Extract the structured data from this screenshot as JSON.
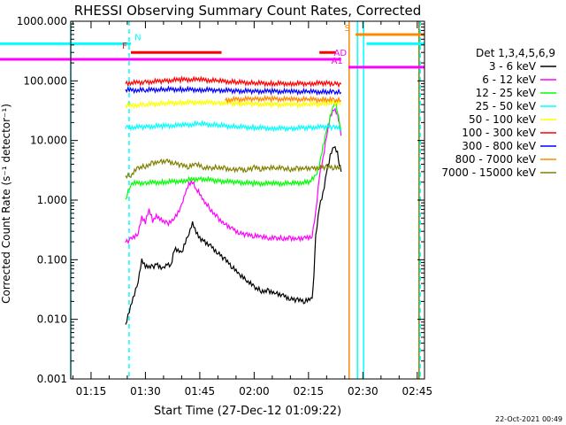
{
  "chart_data": {
    "type": "line",
    "title": "RHESSI Observing Summary Count Rates, Corrected",
    "xlabel": "Start Time (27-Dec-12 01:09:22)",
    "ylabel": "Corrected Count Rate (s⁻¹ detector⁻¹)",
    "footer_date": "22-Oct-2021 00:49",
    "x_scale": "time",
    "x_unit": "minutes after 01:00 UT",
    "xlim": [
      69.4,
      167
    ],
    "y_scale": "log",
    "ylim": [
      0.001,
      1000
    ],
    "xticks": [
      {
        "value": 75,
        "label": "01:15"
      },
      {
        "value": 90,
        "label": "01:30"
      },
      {
        "value": 105,
        "label": "01:45"
      },
      {
        "value": 120,
        "label": "02:00"
      },
      {
        "value": 135,
        "label": "02:15"
      },
      {
        "value": 150,
        "label": "02:30"
      },
      {
        "value": 165,
        "label": "02:45"
      }
    ],
    "yticks": [
      {
        "value": 0.001,
        "label": "0.001"
      },
      {
        "value": 0.01,
        "label": "0.010"
      },
      {
        "value": 0.1,
        "label": "0.100"
      },
      {
        "value": 1,
        "label": "1.000"
      },
      {
        "value": 10,
        "label": "10.000"
      },
      {
        "value": 100,
        "label": "100.000"
      },
      {
        "value": 1000,
        "label": "1000.000"
      }
    ],
    "legend_title": "Det 1,3,4,5,6,9",
    "legend_position": "right",
    "series": [
      {
        "name": "3 - 6 keV",
        "color": "#000000",
        "x": [
          84.5,
          88,
          89,
          90,
          92,
          93,
          95,
          96,
          97,
          98,
          100,
          102,
          103,
          104,
          105,
          106,
          108,
          110,
          112,
          114,
          116,
          118,
          120,
          122,
          124,
          126,
          128,
          130,
          132,
          134,
          136,
          136.5,
          137,
          138,
          139,
          140,
          141,
          142,
          143,
          143.5,
          144
        ],
        "y": [
          0.008,
          0.045,
          0.1,
          0.08,
          0.075,
          0.085,
          0.07,
          0.085,
          0.075,
          0.15,
          0.13,
          0.28,
          0.42,
          0.3,
          0.23,
          0.21,
          0.17,
          0.13,
          0.1,
          0.075,
          0.055,
          0.045,
          0.035,
          0.03,
          0.03,
          0.028,
          0.025,
          0.022,
          0.021,
          0.02,
          0.022,
          0.06,
          0.25,
          0.8,
          1.3,
          3,
          5.5,
          8,
          6,
          4,
          3
        ]
      },
      {
        "name": "6 - 12 keV",
        "color": "#ff00ff",
        "x": [
          84.5,
          86,
          88,
          89,
          90,
          91,
          92,
          93,
          94,
          96,
          98,
          100,
          101,
          102,
          103,
          104,
          105,
          106,
          108,
          110,
          112,
          114,
          116,
          118,
          120,
          122,
          124,
          126,
          128,
          130,
          132,
          134,
          136,
          137,
          138,
          139,
          140,
          141,
          142,
          143,
          143.5,
          144
        ],
        "y": [
          0.2,
          0.22,
          0.28,
          0.5,
          0.42,
          0.7,
          0.45,
          0.55,
          0.5,
          0.4,
          0.5,
          0.8,
          1.3,
          1.8,
          2.0,
          1.5,
          1.3,
          1.0,
          0.7,
          0.5,
          0.4,
          0.33,
          0.28,
          0.26,
          0.25,
          0.24,
          0.23,
          0.23,
          0.23,
          0.23,
          0.23,
          0.23,
          0.25,
          0.6,
          2.5,
          5,
          12,
          25,
          35,
          28,
          20,
          12
        ]
      },
      {
        "name": "12 - 25 keV",
        "color": "#00ff00",
        "x": [
          84.5,
          86,
          90,
          95,
          100,
          105,
          110,
          115,
          120,
          125,
          130,
          135,
          137,
          138,
          139,
          140,
          141,
          142,
          142.5,
          143,
          143.5,
          144
        ],
        "y": [
          1.0,
          1.9,
          1.95,
          2.0,
          2.1,
          2.3,
          2.1,
          2.0,
          1.9,
          1.9,
          1.9,
          2.0,
          2.5,
          4,
          8,
          15,
          25,
          40,
          42,
          30,
          20,
          15
        ]
      },
      {
        "name": "25 - 50 keV",
        "color": "#00ffff",
        "x": [
          84.5,
          85,
          90,
          95,
          100,
          105,
          110,
          115,
          120,
          125,
          130,
          135,
          140,
          142,
          144
        ],
        "y": [
          16,
          16.5,
          17,
          17.5,
          18,
          19,
          18,
          17,
          16.5,
          16,
          16,
          16.5,
          17,
          16.5,
          16
        ]
      },
      {
        "name": "50 - 100 keV",
        "color": "#ffff00",
        "x": [
          84.5,
          90,
          95,
          100,
          105,
          110,
          115,
          120,
          125,
          130,
          135,
          140,
          142,
          144
        ],
        "y": [
          38,
          40,
          42,
          43,
          44,
          43,
          42,
          41,
          40,
          40,
          40,
          42,
          43,
          42
        ]
      },
      {
        "name": "100 - 300 keV",
        "color": "#ff0000",
        "x": [
          84.5,
          90,
          95,
          100,
          105,
          110,
          115,
          120,
          125,
          130,
          135,
          140,
          142,
          144
        ],
        "y": [
          92,
          95,
          100,
          105,
          105,
          100,
          95,
          92,
          90,
          90,
          90,
          92,
          90,
          88
        ]
      },
      {
        "name": "300 - 800 keV",
        "color": "#0000ff",
        "x": [
          84.5,
          90,
          95,
          100,
          105,
          110,
          115,
          120,
          125,
          130,
          135,
          140,
          142,
          144
        ],
        "y": [
          70,
          70,
          72,
          72,
          71,
          70,
          68,
          67,
          67,
          66,
          66,
          65,
          65,
          64
        ]
      },
      {
        "name": "800 - 7000 keV",
        "color": "#ff8800",
        "x": [
          112,
          115,
          120,
          125,
          130,
          135,
          140,
          142,
          144
        ],
        "y": [
          48,
          49,
          50,
          50,
          49,
          49,
          48,
          48,
          47
        ]
      },
      {
        "name": "7000 - 15000 keV",
        "color": "#808000",
        "x": [
          84.5,
          86,
          88,
          90,
          92,
          94,
          96,
          98,
          100,
          102,
          104,
          106,
          108,
          110,
          112,
          114,
          116,
          118,
          120,
          122,
          124,
          126,
          128,
          130,
          132,
          134,
          136,
          138,
          140,
          142,
          144
        ],
        "y": [
          2.5,
          2.6,
          3.5,
          3.7,
          4.2,
          4.5,
          4.5,
          4.2,
          3.8,
          3.6,
          4.0,
          3.5,
          3.4,
          3.6,
          3.4,
          3.3,
          3.3,
          3.2,
          3.5,
          3.3,
          3.4,
          3.5,
          3.4,
          3.3,
          3.4,
          3.5,
          3.4,
          3.5,
          3.6,
          3.5,
          3.4
        ]
      }
    ],
    "flag_bars": [
      {
        "label": "N",
        "color": "#00ffff",
        "y": 420,
        "segments": [
          [
            69.4,
            86
          ]
        ],
        "label_x": 87,
        "label_align": "start"
      },
      {
        "label": "N",
        "color": "#00ffff",
        "y": 420,
        "segments": [
          [
            151,
            167
          ]
        ],
        "label_x": null,
        "label_align": "start"
      },
      {
        "label": "F",
        "color": "#ff0000",
        "y": 300,
        "segments": [
          [
            86,
            111
          ],
          [
            138,
            142.5
          ]
        ],
        "label_x": 85,
        "label_align": "end"
      },
      {
        "label": "AD",
        "color": "#ff00ff",
        "y": 230,
        "segments": [
          [
            69.4,
            144
          ]
        ],
        "label_x": 142,
        "label_align": "start"
      },
      {
        "label": "A1",
        "color": "#ff00ff",
        "y": 170,
        "segments": [
          [
            146,
            167
          ]
        ],
        "label_x": 144.5,
        "label_align": "end"
      },
      {
        "label": "S",
        "color": "#ff8800",
        "y": 600,
        "segments": [
          [
            148,
            167
          ]
        ],
        "label_x": 146.5,
        "label_align": "end"
      }
    ],
    "vertical_lines": [
      {
        "x": 69.4,
        "color": "#00ffff",
        "style": "solid"
      },
      {
        "x": 85.5,
        "color": "#00ffff",
        "style": "dashed"
      },
      {
        "x": 146.2,
        "color": "#ff8800",
        "style": "solid"
      },
      {
        "x": 148.5,
        "color": "#00ffff",
        "style": "solid"
      },
      {
        "x": 150.2,
        "color": "#00ffff",
        "style": "solid"
      },
      {
        "x": 165.5,
        "color": "#808000",
        "style": "solid"
      },
      {
        "x": 165.8,
        "color": "#00ffff",
        "style": "dashed"
      }
    ]
  }
}
